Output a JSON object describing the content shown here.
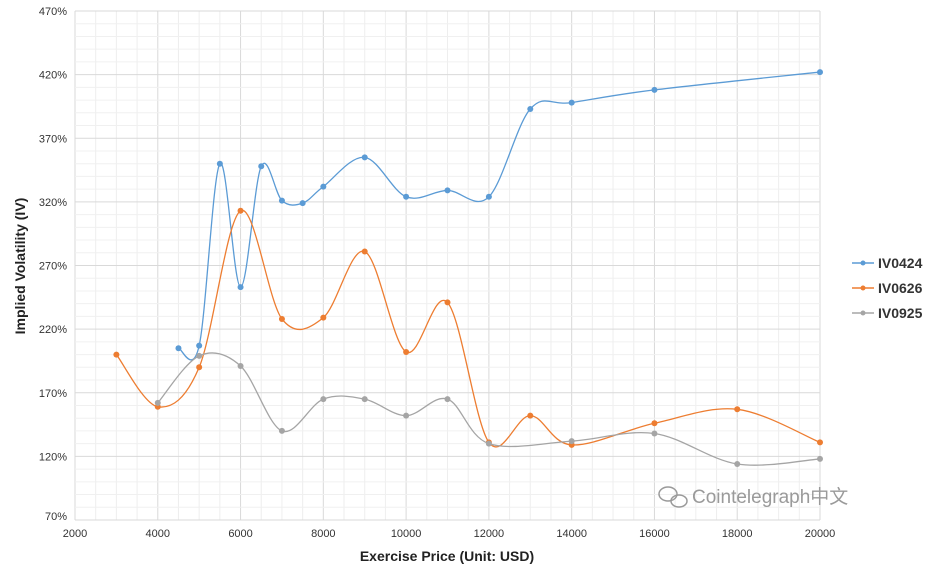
{
  "chart_data": {
    "type": "line",
    "smooth": true,
    "xlabel": "Exercise Price (Unit: USD)",
    "ylabel": "Implied Volatility (IV)",
    "xlim": [
      2000,
      20000
    ],
    "ylim": [
      70,
      470
    ],
    "x_ticks": [
      "2000",
      "4000",
      "6000",
      "8000",
      "10000",
      "12000",
      "14000",
      "16000",
      "18000",
      "20000"
    ],
    "y_ticks": [
      "70%",
      "120%",
      "170%",
      "220%",
      "270%",
      "320%",
      "370%",
      "420%",
      "470%"
    ],
    "grid": true,
    "legend_position": "right",
    "series": [
      {
        "name": "IV0424",
        "color": "#5b9bd5",
        "x": [
          4500,
          5000,
          5500,
          6000,
          6500,
          7000,
          7500,
          8000,
          9000,
          10000,
          11000,
          12000,
          13000,
          14000,
          16000,
          20000
        ],
        "y": [
          205,
          207,
          350,
          253,
          348,
          321,
          319,
          332,
          355,
          324,
          329,
          324,
          393,
          398,
          408,
          422
        ]
      },
      {
        "name": "IV0626",
        "color": "#ed7d31",
        "x": [
          3000,
          4000,
          5000,
          6000,
          7000,
          8000,
          9000,
          10000,
          11000,
          12000,
          13000,
          14000,
          16000,
          18000,
          20000
        ],
        "y": [
          200,
          159,
          190,
          313,
          228,
          229,
          281,
          202,
          241,
          131,
          152,
          129,
          146,
          157,
          131
        ]
      },
      {
        "name": "IV0925",
        "color": "#a5a5a5",
        "x": [
          4000,
          5000,
          6000,
          7000,
          8000,
          9000,
          10000,
          11000,
          12000,
          14000,
          16000,
          18000,
          20000
        ],
        "y": [
          162,
          199,
          191,
          140,
          165,
          165,
          152,
          165,
          130,
          132,
          138,
          114,
          118
        ]
      }
    ]
  },
  "watermark": "Cointelegraph中文"
}
